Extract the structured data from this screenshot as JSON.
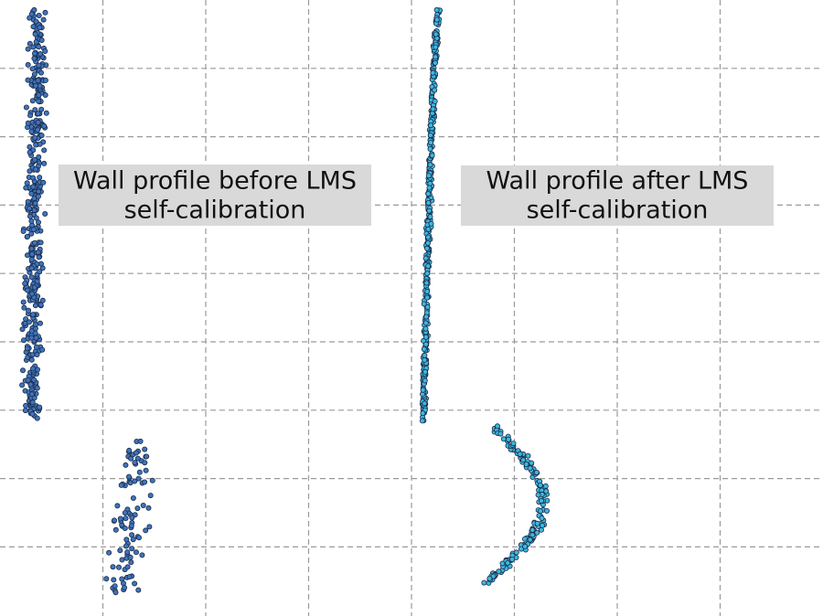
{
  "labels": [
    {
      "lines": [
        "Wall profile before LMS",
        "self-calibration"
      ]
    },
    {
      "lines": [
        "Wall profile after LMS",
        "self-calibration"
      ]
    }
  ]
}
